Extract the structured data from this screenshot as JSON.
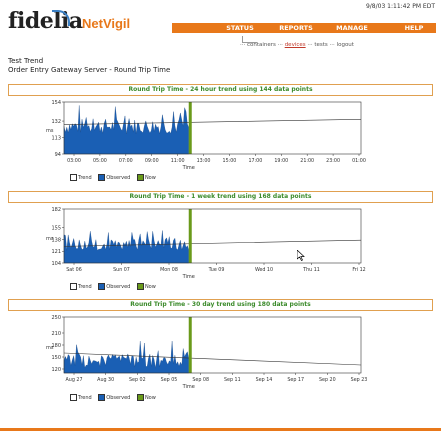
{
  "header": {
    "logo_text": "fidelia",
    "product": "NetVigil",
    "datetime": "9/8/03 1:11:42 PM EDT",
    "nav": [
      "STATUS",
      "REPORTS",
      "MANAGE",
      "HELP"
    ],
    "breadcrumb": {
      "containers": "containers",
      "devices": "devices",
      "tests": "tests",
      "logout": "logout",
      "sep": "···"
    }
  },
  "page": {
    "title_line1": "Test Trend",
    "title_line2": "Order Entry Gateway Server - Round Trip Time"
  },
  "legend": {
    "trend": "Trend",
    "observed": "Observed",
    "now": "Now"
  },
  "colors": {
    "accent": "#e8781a",
    "observed": "#1a5fb4",
    "now": "#6a9a1a",
    "trend": "#333333",
    "panel_title": "#3a8a2a"
  },
  "chart_data": [
    {
      "type": "area",
      "title": "Round Trip Time - 24 hour trend using 144 data points",
      "ylabel": "ms",
      "xlabel": "Time",
      "yticks": [
        94,
        113,
        132,
        154
      ],
      "ylim": [
        94,
        154
      ],
      "xticks": [
        "03:00",
        "05:00",
        "07:00",
        "09:00",
        "11:00",
        "13:00",
        "15:00",
        "17:00",
        "19:00",
        "21:00",
        "23:00",
        "01:00"
      ],
      "now_fraction": 0.42,
      "observed_base": 126,
      "observed_noise": 9,
      "trend_start": 128,
      "trend_end": 134,
      "grid": false,
      "legend": "bottom-left"
    },
    {
      "type": "area",
      "title": "Round Trip Time - 1 week trend using 168 data points",
      "ylabel": "ms",
      "xlabel": "Time",
      "yticks": [
        104,
        121,
        138,
        155,
        182
      ],
      "ylim": [
        104,
        182
      ],
      "xticks": [
        "Sat 06",
        "Sun 07",
        "Mon 08",
        "Tue 09",
        "Wed 10",
        "Thu 11",
        "Fri 12"
      ],
      "now_fraction": 0.42,
      "observed_base": 130,
      "observed_noise": 8,
      "trend_start": 128,
      "trend_end": 137,
      "grid": false,
      "legend": "bottom-left"
    },
    {
      "type": "area",
      "title": "Round Trip Time - 30 day trend using 180 data points",
      "ylabel": "ms",
      "xlabel": "Time",
      "yticks": [
        120,
        150,
        180,
        210,
        250
      ],
      "ylim": [
        110,
        250
      ],
      "xticks": [
        "Aug 27",
        "Aug 30",
        "Sep 02",
        "Sep 05",
        "Sep 08",
        "Sep 11",
        "Sep 14",
        "Sep 17",
        "Sep 20",
        "Sep 23"
      ],
      "now_fraction": 0.42,
      "observed_base": 140,
      "observed_noise": 18,
      "trend_start": 160,
      "trend_end": 130,
      "grid": false,
      "legend": "bottom-left"
    }
  ]
}
